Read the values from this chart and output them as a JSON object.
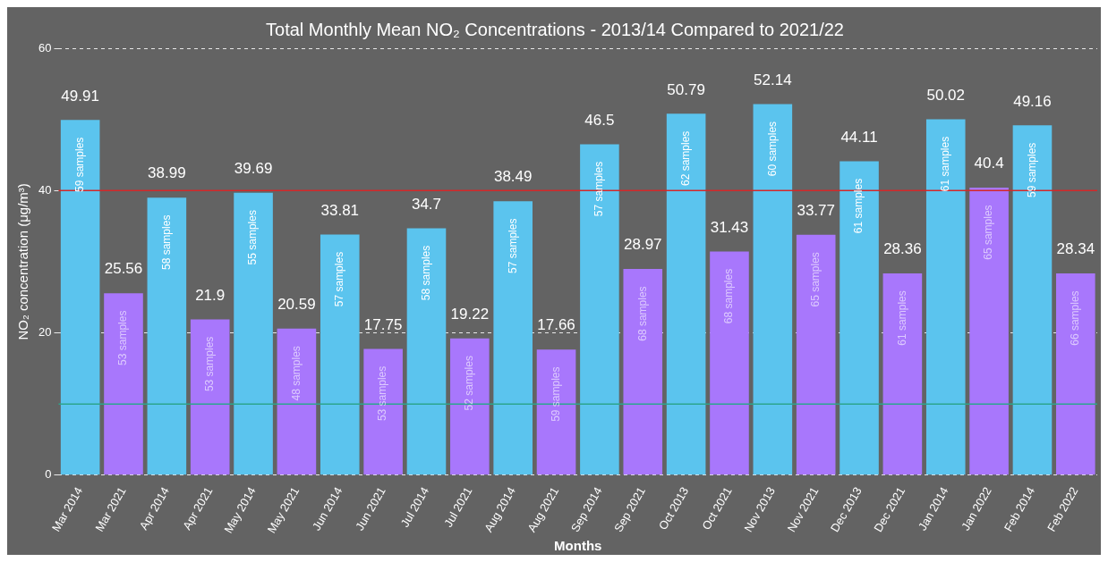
{
  "chart_data": {
    "type": "bar",
    "title": "Total Monthly Mean NO₂ Concentrations - 2013/14 Compared to 2021/22",
    "xlabel": "Months",
    "ylabel": "NO₂ concentration (μg/m³)",
    "categories": [
      "Mar 2014",
      "Mar 2021",
      "Apr 2014",
      "Apr 2021",
      "May 2014",
      "May 2021",
      "Jun 2014",
      "Jun 2021",
      "Jul 2014",
      "Jul 2021",
      "Aug 2014",
      "Aug 2021",
      "Sep 2014",
      "Sep 2021",
      "Oct 2013",
      "Oct 2021",
      "Nov 2013",
      "Nov 2021",
      "Dec 2013",
      "Dec 2021",
      "Jan 2014",
      "Jan 2022",
      "Feb 2014",
      "Feb 2022"
    ],
    "values": [
      49.91,
      25.56,
      38.99,
      21.9,
      39.69,
      20.59,
      33.81,
      17.75,
      34.7,
      19.22,
      38.49,
      17.66,
      46.5,
      28.97,
      50.79,
      31.43,
      52.14,
      33.77,
      44.11,
      28.36,
      50.02,
      40.4,
      49.16,
      28.34
    ],
    "colors": [
      "#5bc4ee",
      "#a877fc",
      "#5bc4ee",
      "#a877fc",
      "#5bc4ee",
      "#a877fc",
      "#5bc4ee",
      "#a877fc",
      "#5bc4ee",
      "#a877fc",
      "#5bc4ee",
      "#a877fc",
      "#5bc4ee",
      "#a877fc",
      "#5bc4ee",
      "#a877fc",
      "#5bc4ee",
      "#a877fc",
      "#5bc4ee",
      "#a877fc",
      "#5bc4ee",
      "#a877fc",
      "#5bc4ee",
      "#a877fc"
    ],
    "data_labels": true,
    "ylim": [
      0,
      60
    ],
    "yticks": [
      0,
      20,
      40,
      60
    ],
    "grid": "y",
    "legend": false,
    "ref_lines": [
      {
        "axis": "y",
        "value": 40,
        "color": "#d62728"
      },
      {
        "axis": "y",
        "value": 10,
        "color": "#2ca58d"
      }
    ],
    "annotations": [
      {
        "text": "59 samples",
        "x": "Mar 2014",
        "y": 49.91
      },
      {
        "text": "53 samples",
        "x": "Mar 2021",
        "y": 25.56
      },
      {
        "text": "58 samples",
        "x": "Apr 2014",
        "y": 38.99
      },
      {
        "text": "53 samples",
        "x": "Apr 2021",
        "y": 21.9
      },
      {
        "text": "55 samples",
        "x": "May 2014",
        "y": 39.69
      },
      {
        "text": "48 samples",
        "x": "May 2021",
        "y": 20.59
      },
      {
        "text": "57 samples",
        "x": "Jun 2014",
        "y": 33.81
      },
      {
        "text": "53 samples",
        "x": "Jun 2021",
        "y": 17.75
      },
      {
        "text": "58 samples",
        "x": "Jul 2014",
        "y": 34.7
      },
      {
        "text": "52 samples",
        "x": "Jul 2021",
        "y": 19.22
      },
      {
        "text": "57 samples",
        "x": "Aug 2014",
        "y": 38.49
      },
      {
        "text": "59 samples",
        "x": "Aug 2021",
        "y": 17.66
      },
      {
        "text": "57 samples",
        "x": "Sep 2014",
        "y": 46.5
      },
      {
        "text": "68 samples",
        "x": "Sep 2021",
        "y": 28.97
      },
      {
        "text": "62 samples",
        "x": "Oct 2013",
        "y": 50.79
      },
      {
        "text": "68 samples",
        "x": "Oct 2021",
        "y": 31.43
      },
      {
        "text": "60 samples",
        "x": "Nov 2013",
        "y": 52.14
      },
      {
        "text": "65 samples",
        "x": "Nov 2021",
        "y": 33.77
      },
      {
        "text": "61 samples",
        "x": "Dec 2013",
        "y": 44.11
      },
      {
        "text": "61 samples",
        "x": "Dec 2021",
        "y": 28.36
      },
      {
        "text": "61 samples",
        "x": "Jan 2014",
        "y": 50.02
      },
      {
        "text": "65 samples",
        "x": "Jan 2022",
        "y": 40.4
      },
      {
        "text": "59 samples",
        "x": "Feb 2014",
        "y": 49.16
      },
      {
        "text": "66 samples",
        "x": "Feb 2022",
        "y": 28.34
      }
    ]
  }
}
